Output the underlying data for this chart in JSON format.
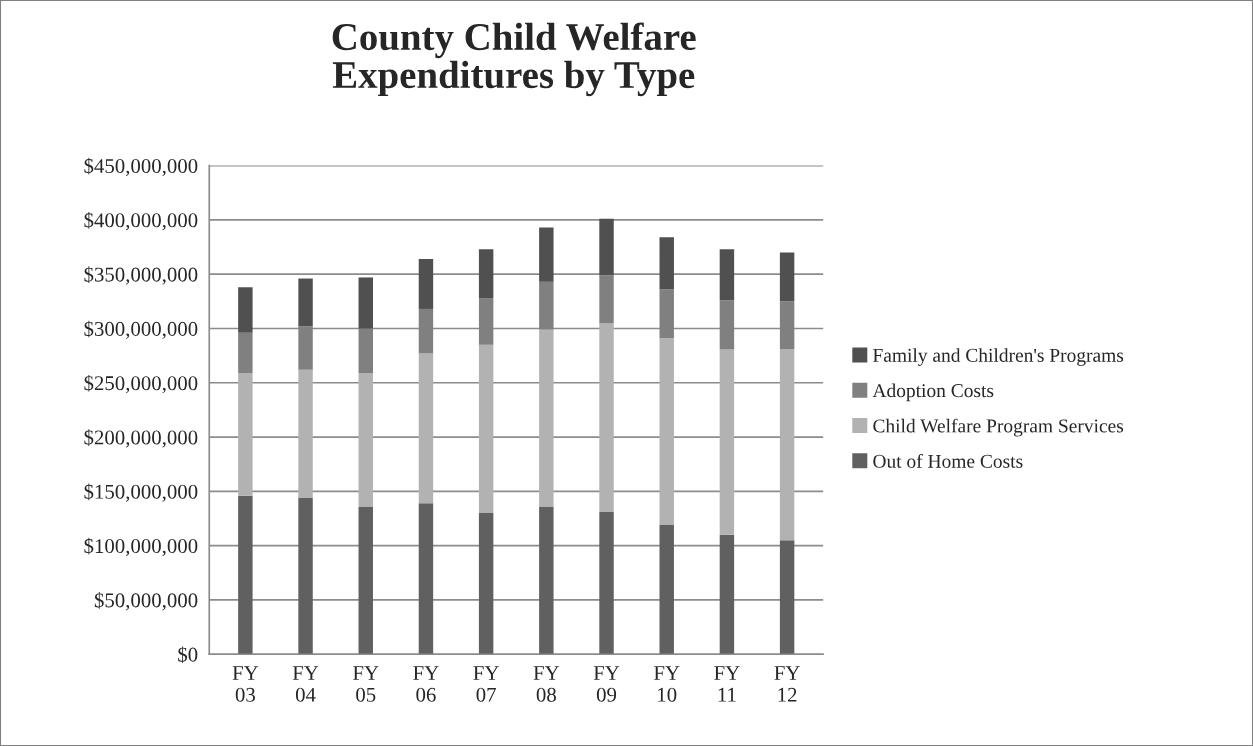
{
  "chart_data": {
    "type": "bar",
    "stacked": true,
    "title": "County Child Welfare\nExpenditures by Type",
    "categories": [
      "FY\n03",
      "FY\n04",
      "FY\n05",
      "FY\n06",
      "FY\n07",
      "FY\n08",
      "FY\n09",
      "FY\n10",
      "FY\n11",
      "FY\n12"
    ],
    "series": [
      {
        "name": "Out of Home Costs",
        "color": "#606060",
        "values": [
          146000000,
          144000000,
          136000000,
          139000000,
          130000000,
          136000000,
          131000000,
          119000000,
          110000000,
          105000000
        ]
      },
      {
        "name": "Child Welfare Program Services",
        "color": "#b2b2b2",
        "values": [
          113000000,
          118000000,
          123000000,
          138000000,
          155000000,
          163000000,
          174000000,
          172000000,
          171000000,
          176000000
        ]
      },
      {
        "name": "Adoption Costs",
        "color": "#808080",
        "values": [
          37000000,
          40000000,
          41000000,
          41000000,
          43000000,
          44000000,
          44000000,
          45000000,
          45000000,
          44000000
        ]
      },
      {
        "name": "Family and Children's Programs",
        "color": "#505050",
        "values": [
          42000000,
          44000000,
          47000000,
          46000000,
          45000000,
          50000000,
          52000000,
          48000000,
          47000000,
          45000000
        ]
      }
    ],
    "ylim": [
      0,
      450000000
    ],
    "yticks": [
      {
        "value": 0,
        "label": "$0"
      },
      {
        "value": 50000000,
        "label": "$50,000,000"
      },
      {
        "value": 100000000,
        "label": "$100,000,000"
      },
      {
        "value": 150000000,
        "label": "$150,000,000"
      },
      {
        "value": 200000000,
        "label": "$200,000,000"
      },
      {
        "value": 250000000,
        "label": "$250,000,000"
      },
      {
        "value": 300000000,
        "label": "$300,000,000"
      },
      {
        "value": 350000000,
        "label": "$350,000,000"
      },
      {
        "value": 400000000,
        "label": "$400,000,000"
      },
      {
        "value": 450000000,
        "label": "$450,000,000"
      }
    ],
    "grid": "y",
    "legend": "right"
  }
}
